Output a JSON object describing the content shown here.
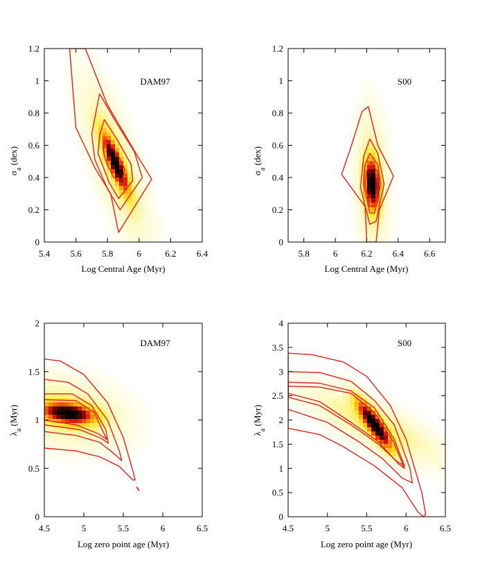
{
  "chart_data": [
    {
      "type": "heatmap",
      "label": "DAM97",
      "xlabel": "Log Central Age  (Myr)",
      "ylabel_main": "σ",
      "ylabel_sub": "a",
      "ylabel_rest": " (dex)",
      "xlim": [
        5.4,
        6.4
      ],
      "ylim": [
        0,
        1.2
      ],
      "xticks": [
        "5.4",
        "5.6",
        "5.8",
        "6",
        "6.2",
        "6.4"
      ],
      "yticks": [
        "0",
        "0.2",
        "0.4",
        "0.6",
        "0.8",
        "1",
        "1.2"
      ],
      "peak": {
        "x": 5.85,
        "y": 0.49,
        "sx": 0.055,
        "sy": 0.12,
        "rho": -0.85
      },
      "halo": {
        "sx": 0.15,
        "sy": 0.35
      },
      "contours": [
        [
          [
            5.56,
            1.2
          ],
          [
            5.66,
            1.2
          ],
          [
            5.8,
            0.85
          ],
          [
            5.98,
            0.55
          ],
          [
            6.08,
            0.39
          ],
          [
            5.87,
            0.06
          ],
          [
            5.82,
            0.3
          ],
          [
            5.72,
            0.46
          ],
          [
            5.6,
            0.71
          ],
          [
            5.56,
            1.2
          ]
        ],
        [
          [
            5.75,
            0.92
          ],
          [
            5.85,
            0.75
          ],
          [
            5.97,
            0.56
          ],
          [
            6.02,
            0.4
          ],
          [
            5.88,
            0.2
          ],
          [
            5.8,
            0.33
          ],
          [
            5.72,
            0.51
          ],
          [
            5.7,
            0.67
          ],
          [
            5.75,
            0.92
          ]
        ],
        [
          [
            5.78,
            0.76
          ],
          [
            5.87,
            0.62
          ],
          [
            5.95,
            0.48
          ],
          [
            5.96,
            0.38
          ],
          [
            5.87,
            0.27
          ],
          [
            5.81,
            0.37
          ],
          [
            5.74,
            0.55
          ],
          [
            5.75,
            0.66
          ],
          [
            5.78,
            0.76
          ]
        ],
        [
          [
            5.79,
            0.64
          ],
          [
            5.86,
            0.55
          ],
          [
            5.91,
            0.45
          ],
          [
            5.89,
            0.38
          ],
          [
            5.84,
            0.4
          ],
          [
            5.79,
            0.5
          ],
          [
            5.77,
            0.58
          ],
          [
            5.79,
            0.64
          ]
        ]
      ]
    },
    {
      "type": "heatmap",
      "label": "S00",
      "xlabel": "Log Central Age  (Myr)",
      "ylabel_main": "σ",
      "ylabel_sub": "a",
      "ylabel_rest": " (dex)",
      "xlim": [
        5.7,
        6.7
      ],
      "ylim": [
        0,
        1.2
      ],
      "xticks": [
        "5.8",
        "6",
        "6.2",
        "6.4",
        "6.6"
      ],
      "yticks": [
        "0",
        "0.2",
        "0.4",
        "0.6",
        "0.8",
        "1",
        "1.2"
      ],
      "peak": {
        "x": 6.235,
        "y": 0.36,
        "sx": 0.032,
        "sy": 0.1,
        "rho": -0.15
      },
      "halo": {
        "sx": 0.07,
        "sy": 0.3
      },
      "contours": [
        [
          [
            6.17,
            0.81
          ],
          [
            6.21,
            0.84
          ],
          [
            6.27,
            0.6
          ],
          [
            6.37,
            0.41
          ],
          [
            6.28,
            0.2
          ],
          [
            6.26,
            0.0
          ],
          [
            6.2,
            0.0
          ],
          [
            6.19,
            0.22
          ],
          [
            6.04,
            0.42
          ],
          [
            6.1,
            0.59
          ],
          [
            6.17,
            0.81
          ]
        ],
        [
          [
            6.22,
            0.64
          ],
          [
            6.27,
            0.55
          ],
          [
            6.31,
            0.36
          ],
          [
            6.26,
            0.13
          ],
          [
            6.22,
            0.11
          ],
          [
            6.16,
            0.34
          ],
          [
            6.18,
            0.53
          ],
          [
            6.22,
            0.64
          ]
        ],
        [
          [
            6.22,
            0.55
          ],
          [
            6.27,
            0.48
          ],
          [
            6.29,
            0.36
          ],
          [
            6.25,
            0.18
          ],
          [
            6.22,
            0.18
          ],
          [
            6.18,
            0.36
          ],
          [
            6.19,
            0.48
          ],
          [
            6.22,
            0.55
          ]
        ],
        [
          [
            6.23,
            0.5
          ],
          [
            6.27,
            0.43
          ],
          [
            6.28,
            0.36
          ],
          [
            6.25,
            0.22
          ],
          [
            6.22,
            0.22
          ],
          [
            6.19,
            0.36
          ],
          [
            6.2,
            0.44
          ],
          [
            6.23,
            0.5
          ]
        ]
      ]
    },
    {
      "type": "heatmap",
      "label": "DAM97",
      "xlabel": "Log zero point age (Myr)",
      "ylabel_main": "λ",
      "ylabel_sub": "a",
      "ylabel_rest": " (Myr)",
      "xlim": [
        4.5,
        6.5
      ],
      "ylim": [
        0,
        2
      ],
      "xticks": [
        "4.5",
        "5",
        "5.5",
        "6",
        "6.5"
      ],
      "yticks": [
        "0",
        "0.5",
        "1",
        "1.5",
        "2"
      ],
      "peak": {
        "x": 4.8,
        "y": 1.07,
        "sx": 0.22,
        "sy": 0.07,
        "rho": -0.3
      },
      "halo": {
        "sx": 0.5,
        "sy": 0.25
      },
      "contours": [
        [
          [
            4.5,
            1.63
          ],
          [
            4.7,
            1.61
          ],
          [
            5.0,
            1.47
          ],
          [
            5.3,
            1.18
          ],
          [
            5.5,
            0.82
          ],
          [
            5.63,
            0.45
          ],
          [
            5.65,
            0.38
          ],
          [
            5.62,
            0.38
          ],
          [
            5.45,
            0.52
          ],
          [
            5.2,
            0.62
          ],
          [
            4.9,
            0.68
          ],
          [
            4.5,
            0.71
          ],
          [
            4.5,
            1.63
          ]
        ],
        [
          [
            4.5,
            1.42
          ],
          [
            4.8,
            1.39
          ],
          [
            5.05,
            1.27
          ],
          [
            5.3,
            1.0
          ],
          [
            5.45,
            0.68
          ],
          [
            5.48,
            0.58
          ],
          [
            5.4,
            0.64
          ],
          [
            5.2,
            0.77
          ],
          [
            4.9,
            0.84
          ],
          [
            4.5,
            0.88
          ],
          [
            4.5,
            1.42
          ]
        ],
        [
          [
            4.5,
            1.27
          ],
          [
            4.85,
            1.27
          ],
          [
            5.1,
            1.15
          ],
          [
            5.28,
            0.9
          ],
          [
            5.31,
            0.76
          ],
          [
            5.22,
            0.81
          ],
          [
            4.95,
            0.9
          ],
          [
            4.5,
            0.95
          ],
          [
            4.5,
            1.27
          ]
        ],
        [
          [
            4.5,
            1.21
          ],
          [
            4.9,
            1.2
          ],
          [
            5.13,
            1.08
          ],
          [
            5.29,
            0.8
          ],
          [
            5.18,
            0.86
          ],
          [
            4.9,
            0.95
          ],
          [
            4.5,
            1.0
          ],
          [
            4.5,
            1.21
          ]
        ],
        [
          [
            5.67,
            0.31
          ],
          [
            5.7,
            0.27
          ],
          [
            5.68,
            0.29
          ],
          [
            5.67,
            0.31
          ]
        ]
      ]
    },
    {
      "type": "heatmap",
      "label": "S00",
      "xlabel": "Log zero point age (Myr)",
      "ylabel_main": "λ",
      "ylabel_sub": "a",
      "ylabel_rest": " (Myr)",
      "xlim": [
        4.5,
        6.5
      ],
      "ylim": [
        0,
        4
      ],
      "xticks": [
        "4.5",
        "5",
        "5.5",
        "6",
        "6.5"
      ],
      "yticks": [
        "0",
        "0.5",
        "1",
        "1.5",
        "2",
        "2.5",
        "3",
        "3.5",
        "4"
      ],
      "peak": {
        "x": 5.6,
        "y": 1.9,
        "sx": 0.15,
        "sy": 0.35,
        "rho": -0.88
      },
      "halo": {
        "sx": 0.6,
        "sy": 0.55
      },
      "contours": [
        [
          [
            4.5,
            3.38
          ],
          [
            4.8,
            3.35
          ],
          [
            5.2,
            3.2
          ],
          [
            5.5,
            2.9
          ],
          [
            5.8,
            2.3
          ],
          [
            6.0,
            1.6
          ],
          [
            6.2,
            0.5
          ],
          [
            6.25,
            0.05
          ],
          [
            6.22,
            0.0
          ],
          [
            6.15,
            0.1
          ],
          [
            5.95,
            0.6
          ],
          [
            5.6,
            1.05
          ],
          [
            5.2,
            1.45
          ],
          [
            4.9,
            1.7
          ],
          [
            4.5,
            1.83
          ],
          [
            4.5,
            3.38
          ]
        ],
        [
          [
            4.5,
            3.0
          ],
          [
            4.9,
            2.98
          ],
          [
            5.3,
            2.8
          ],
          [
            5.6,
            2.4
          ],
          [
            5.85,
            1.9
          ],
          [
            6.05,
            1.0
          ],
          [
            6.08,
            0.7
          ],
          [
            5.95,
            0.8
          ],
          [
            5.7,
            1.2
          ],
          [
            5.4,
            1.55
          ],
          [
            5.0,
            1.95
          ],
          [
            4.5,
            2.22
          ],
          [
            4.5,
            3.0
          ]
        ],
        [
          [
            4.5,
            2.78
          ],
          [
            4.9,
            2.76
          ],
          [
            5.3,
            2.6
          ],
          [
            5.6,
            2.25
          ],
          [
            5.85,
            1.6
          ],
          [
            5.98,
            1.05
          ],
          [
            5.88,
            1.15
          ],
          [
            5.65,
            1.5
          ],
          [
            5.3,
            1.9
          ],
          [
            4.9,
            2.3
          ],
          [
            4.5,
            2.47
          ],
          [
            4.5,
            2.78
          ]
        ],
        [
          [
            4.5,
            2.7
          ],
          [
            4.9,
            2.68
          ],
          [
            5.3,
            2.55
          ],
          [
            5.6,
            2.15
          ],
          [
            5.84,
            1.55
          ],
          [
            5.98,
            1.0
          ],
          [
            5.9,
            1.1
          ],
          [
            5.65,
            1.55
          ],
          [
            5.3,
            1.95
          ],
          [
            4.9,
            2.38
          ],
          [
            4.5,
            2.55
          ],
          [
            4.5,
            2.7
          ]
        ]
      ]
    }
  ]
}
